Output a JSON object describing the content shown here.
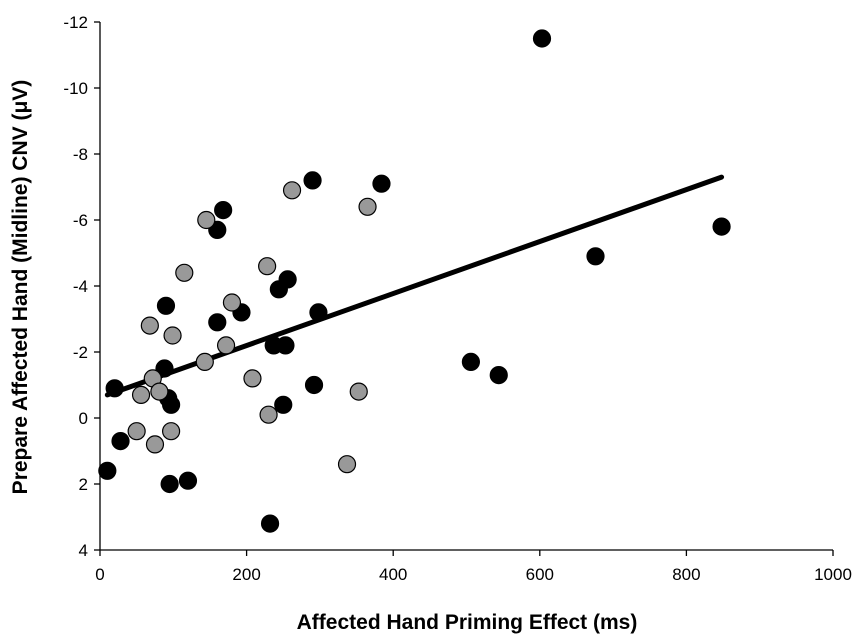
{
  "chart_data": {
    "type": "scatter",
    "title": "",
    "xlabel": "Affected Hand Priming Effect (ms)",
    "ylabel": "Prepare Affected Hand (Midline) CNV (μV)",
    "xlim": [
      0,
      1000
    ],
    "ylim": [
      4,
      -12
    ],
    "y_axis_inverted": true,
    "x_ticks": [
      "0",
      "200",
      "400",
      "600",
      "800",
      "1000"
    ],
    "y_ticks": [
      "-12",
      "-10",
      "-8",
      "-6",
      "-4",
      "-2",
      "0",
      "2",
      "4"
    ],
    "grid": false,
    "legend": "none",
    "colors": {
      "series_a": "#000000",
      "series_b": "#999999",
      "trendline": "#000000"
    },
    "series": [
      {
        "points": [
          [
            10,
            1.6
          ],
          [
            20,
            -0.9
          ],
          [
            28,
            0.7
          ],
          [
            88,
            -1.5
          ],
          [
            90,
            -3.4
          ],
          [
            93,
            -0.6
          ],
          [
            97,
            -0.4
          ],
          [
            95,
            2.0
          ],
          [
            120,
            1.9
          ],
          [
            160,
            -2.9
          ],
          [
            160,
            -5.7
          ],
          [
            168,
            -6.3
          ],
          [
            193,
            -3.2
          ],
          [
            232,
            3.2
          ],
          [
            237,
            -2.2
          ],
          [
            244,
            -3.9
          ],
          [
            250,
            -0.4
          ],
          [
            253,
            -2.2
          ],
          [
            256,
            -4.2
          ],
          [
            290,
            -7.2
          ],
          [
            292,
            -1.0
          ],
          [
            298,
            -3.2
          ],
          [
            384,
            -7.1
          ],
          [
            506,
            -1.7
          ],
          [
            544,
            -1.3
          ],
          [
            603,
            -11.5
          ],
          [
            676,
            -4.9
          ],
          [
            848,
            -5.8
          ]
        ]
      },
      {
        "points": [
          [
            50,
            0.4
          ],
          [
            56,
            -0.7
          ],
          [
            68,
            -2.8
          ],
          [
            72,
            -1.2
          ],
          [
            75,
            0.8
          ],
          [
            81,
            -0.8
          ],
          [
            97,
            0.4
          ],
          [
            99,
            -2.5
          ],
          [
            115,
            -4.4
          ],
          [
            143,
            -1.7
          ],
          [
            145,
            -6.0
          ],
          [
            172,
            -2.2
          ],
          [
            180,
            -3.5
          ],
          [
            208,
            -1.2
          ],
          [
            228,
            -4.6
          ],
          [
            230,
            -0.1
          ],
          [
            262,
            -6.9
          ],
          [
            337,
            1.4
          ],
          [
            353,
            -0.8
          ],
          [
            365,
            -6.4
          ]
        ]
      }
    ],
    "trendline": {
      "x": [
        10,
        848
      ],
      "y": [
        -0.7,
        -7.3
      ]
    }
  }
}
